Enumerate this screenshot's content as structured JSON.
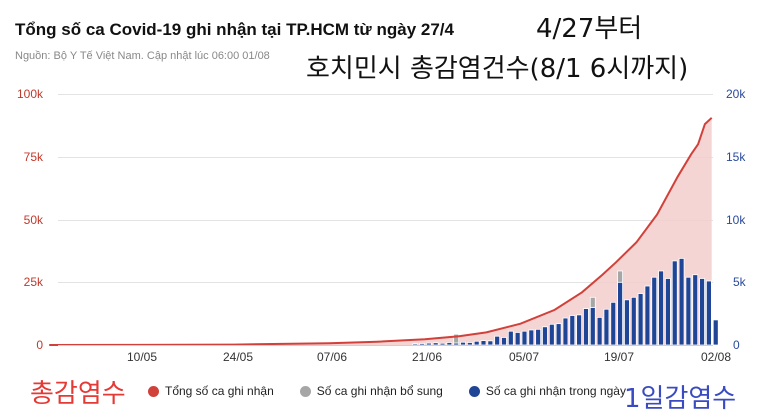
{
  "header": {
    "title": "Tổng số ca Covid-19 ghi nhận tại TP.HCM từ ngày 27/4",
    "subtitle": "Nguồn: Bộ Y Tế Việt Nam. Cập nhật lúc 06:00 01/08",
    "annotation_ko_1": "4/27부터",
    "annotation_ko_2": "호치민시 총감염건수(8/1 6시까지)"
  },
  "annotations": {
    "left_ko": "총감염수",
    "right_ko": "1일감염수"
  },
  "axes": {
    "left_ticks": [
      "100k",
      "75k",
      "50k",
      "25k",
      "0"
    ],
    "right_ticks": [
      "20k",
      "15k",
      "10k",
      "5k",
      "0"
    ],
    "x_ticks": [
      "10/05",
      "24/05",
      "07/06",
      "21/06",
      "05/07",
      "19/07",
      "02/08"
    ]
  },
  "legend": [
    {
      "label": "Tổng số ca ghi nhận",
      "color": "#d1413a"
    },
    {
      "label": "Số ca ghi nhận bổ sung",
      "color": "#a6a6a6"
    },
    {
      "label": "Số ca ghi nhận trong ngày",
      "color": "#1f4596"
    }
  ],
  "colors": {
    "cumulative_line": "#d1413a",
    "cumulative_fill": "#f3cccc",
    "daily_bar": "#1f4596",
    "supplement_bar": "#a6a6a6",
    "grid": "#e3e3e3",
    "left_axis_text": "#c0392b",
    "right_axis_text": "#2a4a9a"
  },
  "chart_data": {
    "type": "bar+area",
    "title": "Tổng số ca Covid-19 ghi nhận tại TP.HCM từ ngày 27/4",
    "subtitle": "Nguồn: Bộ Y Tế Việt Nam. Cập nhật lúc 06:00 01/08",
    "x_start": "27/04",
    "x_end": "01/08",
    "x_tick_labels": [
      "10/05",
      "24/05",
      "07/06",
      "21/06",
      "05/07",
      "19/07",
      "02/08"
    ],
    "left_axis": {
      "label": "Tổng số ca ghi nhận",
      "range": [
        0,
        100000
      ],
      "ticks": [
        0,
        25000,
        50000,
        75000,
        100000
      ]
    },
    "right_axis": {
      "label": "Số ca ghi nhận trong ngày",
      "range": [
        0,
        20000
      ],
      "ticks": [
        0,
        5000,
        10000,
        15000,
        20000
      ]
    },
    "grid": true,
    "legend_position": "bottom",
    "series": [
      {
        "name": "Tổng số ca ghi nhận",
        "type": "area",
        "axis": "left",
        "points": [
          [
            "27/04",
            0
          ],
          [
            "10/05",
            30
          ],
          [
            "24/05",
            150
          ],
          [
            "07/06",
            700
          ],
          [
            "14/06",
            1300
          ],
          [
            "21/06",
            2300
          ],
          [
            "26/06",
            3500
          ],
          [
            "30/06",
            5000
          ],
          [
            "05/07",
            8500
          ],
          [
            "10/07",
            14000
          ],
          [
            "14/07",
            21000
          ],
          [
            "17/07",
            28000
          ],
          [
            "19/07",
            33000
          ],
          [
            "22/07",
            41000
          ],
          [
            "25/07",
            52000
          ],
          [
            "28/07",
            67000
          ],
          [
            "30/07",
            76000
          ],
          [
            "31/07",
            80000
          ],
          [
            "01/08",
            88000
          ],
          [
            "02/08",
            90500
          ]
        ]
      },
      {
        "name": "Số ca ghi nhận trong ngày",
        "type": "bar",
        "axis": "right",
        "note": "approximate daily values read from bars, late June to 01/08",
        "points": [
          [
            "19/06",
            100
          ],
          [
            "20/06",
            120
          ],
          [
            "21/06",
            150
          ],
          [
            "22/06",
            180
          ],
          [
            "23/06",
            140
          ],
          [
            "24/06",
            200
          ],
          [
            "25/06",
            160
          ],
          [
            "26/06",
            220
          ],
          [
            "27/06",
            200
          ],
          [
            "28/06",
            300
          ],
          [
            "29/06",
            350
          ],
          [
            "30/06",
            330
          ],
          [
            "01/07",
            700
          ],
          [
            "02/07",
            600
          ],
          [
            "03/07",
            1100
          ],
          [
            "04/07",
            1000
          ],
          [
            "05/07",
            1100
          ],
          [
            "06/07",
            1200
          ],
          [
            "07/07",
            1250
          ],
          [
            "08/07",
            1450
          ],
          [
            "09/07",
            1650
          ],
          [
            "10/07",
            1700
          ],
          [
            "11/07",
            2150
          ],
          [
            "12/07",
            2350
          ],
          [
            "13/07",
            2400
          ],
          [
            "14/07",
            2900
          ],
          [
            "15/07",
            3000
          ],
          [
            "16/07",
            2200
          ],
          [
            "17/07",
            2850
          ],
          [
            "18/07",
            3400
          ],
          [
            "19/07",
            5000
          ],
          [
            "20/07",
            3600
          ],
          [
            "21/07",
            3800
          ],
          [
            "22/07",
            4100
          ],
          [
            "23/07",
            4700
          ],
          [
            "24/07",
            5400
          ],
          [
            "25/07",
            5900
          ],
          [
            "26/07",
            5300
          ],
          [
            "27/07",
            6700
          ],
          [
            "28/07",
            6900
          ],
          [
            "29/07",
            5400
          ],
          [
            "30/07",
            5600
          ],
          [
            "31/07",
            5300
          ],
          [
            "01/08",
            5100
          ],
          [
            "02/08",
            2000
          ]
        ]
      },
      {
        "name": "Số ca ghi nhận bổ sung",
        "type": "bar",
        "axis": "right",
        "note": "grey stacked supplements on top of a few daily bars",
        "points": [
          [
            "25/06",
            700
          ],
          [
            "15/07",
            800
          ],
          [
            "19/07",
            900
          ]
        ]
      }
    ]
  }
}
